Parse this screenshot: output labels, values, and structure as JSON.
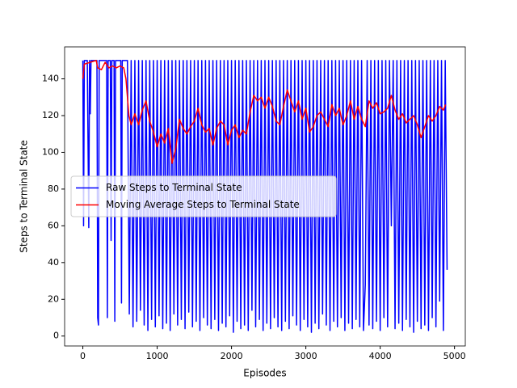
{
  "chart_data": {
    "type": "line",
    "xlabel": "Episodes",
    "ylabel": "Steps to Terminal State",
    "xlim": [
      -245,
      5145
    ],
    "ylim": [
      -5.4,
      157.4
    ],
    "xticks": [
      0,
      1000,
      2000,
      3000,
      4000,
      5000
    ],
    "yticks": [
      0,
      20,
      40,
      60,
      80,
      100,
      120,
      140
    ],
    "legend": "center left",
    "series": [
      {
        "name": "Raw Steps to Terminal State",
        "color": "#0000ff",
        "x": [
          0,
          10,
          20,
          60,
          80,
          90,
          100,
          110,
          190,
          200,
          210,
          220,
          320,
          330,
          340,
          370,
          380,
          390,
          420,
          430,
          440,
          510,
          520,
          530,
          580,
          600,
          625,
          650,
          675,
          700,
          725,
          750,
          775,
          800,
          825,
          850,
          875,
          900,
          925,
          950,
          975,
          1000,
          1025,
          1050,
          1075,
          1100,
          1125,
          1150,
          1175,
          1200,
          1225,
          1250,
          1275,
          1300,
          1325,
          1350,
          1375,
          1400,
          1425,
          1450,
          1475,
          1500,
          1525,
          1550,
          1575,
          1600,
          1625,
          1650,
          1675,
          1700,
          1725,
          1750,
          1775,
          1800,
          1825,
          1850,
          1875,
          1900,
          1925,
          1950,
          1975,
          2000,
          2025,
          2050,
          2075,
          2100,
          2125,
          2150,
          2175,
          2200,
          2225,
          2250,
          2275,
          2300,
          2325,
          2350,
          2375,
          2400,
          2425,
          2450,
          2475,
          2500,
          2525,
          2550,
          2575,
          2600,
          2625,
          2650,
          2675,
          2700,
          2725,
          2750,
          2775,
          2800,
          2825,
          2850,
          2875,
          2900,
          2925,
          2950,
          2975,
          3000,
          3025,
          3050,
          3075,
          3100,
          3125,
          3150,
          3175,
          3200,
          3225,
          3250,
          3275,
          3300,
          3325,
          3350,
          3375,
          3400,
          3425,
          3450,
          3475,
          3500,
          3525,
          3550,
          3575,
          3600,
          3625,
          3650,
          3675,
          3700,
          3725,
          3750,
          3775,
          3800,
          3825,
          3850,
          3875,
          3900,
          3925,
          3950,
          3975,
          4000,
          4025,
          4050,
          4075,
          4100,
          4125,
          4150,
          4175,
          4200,
          4225,
          4250,
          4275,
          4300,
          4325,
          4350,
          4375,
          4400,
          4425,
          4450,
          4475,
          4500,
          4525,
          4550,
          4575,
          4600,
          4625,
          4650,
          4675,
          4700,
          4725,
          4750,
          4775,
          4800,
          4825,
          4850,
          4875,
          4900
        ],
        "values": [
          150,
          60,
          150,
          150,
          59,
          150,
          121,
          150,
          150,
          10,
          6,
          150,
          150,
          10,
          150,
          150,
          52,
          150,
          150,
          8,
          150,
          150,
          18,
          150,
          150,
          150,
          12,
          150,
          5,
          150,
          8,
          150,
          14,
          150,
          6,
          150,
          3,
          150,
          9,
          150,
          5,
          150,
          11,
          150,
          4,
          150,
          7,
          150,
          3,
          150,
          12,
          150,
          6,
          150,
          9,
          150,
          4,
          150,
          13,
          150,
          5,
          150,
          8,
          150,
          3,
          150,
          10,
          150,
          6,
          150,
          4,
          150,
          9,
          150,
          3,
          150,
          7,
          150,
          5,
          150,
          11,
          150,
          2,
          150,
          8,
          150,
          4,
          150,
          6,
          150,
          3,
          150,
          14,
          150,
          5,
          150,
          9,
          150,
          3,
          150,
          7,
          150,
          4,
          150,
          10,
          150,
          5,
          150,
          3,
          150,
          8,
          150,
          4,
          150,
          11,
          150,
          6,
          150,
          3,
          150,
          9,
          150,
          5,
          150,
          2,
          150,
          7,
          150,
          4,
          150,
          12,
          150,
          6,
          150,
          3,
          150,
          8,
          150,
          5,
          150,
          10,
          150,
          3,
          150,
          7,
          150,
          4,
          150,
          9,
          150,
          5,
          150,
          3,
          28,
          150,
          6,
          150,
          4,
          150,
          8,
          150,
          3,
          150,
          10,
          150,
          5,
          150,
          60,
          150,
          4,
          150,
          7,
          150,
          3,
          150,
          9,
          150,
          5,
          150,
          2,
          150,
          8,
          150,
          4,
          150,
          6,
          150,
          3,
          150,
          10,
          150,
          5,
          150,
          19,
          150,
          3,
          150,
          36
        ]
      },
      {
        "name": "Moving Average Steps to Terminal State",
        "color": "#ff0000",
        "x": [
          0,
          20,
          100,
          180,
          200,
          250,
          300,
          350,
          400,
          450,
          500,
          550,
          580,
          620,
          650,
          700,
          750,
          800,
          850,
          900,
          950,
          1000,
          1050,
          1100,
          1150,
          1200,
          1250,
          1300,
          1350,
          1400,
          1450,
          1500,
          1550,
          1600,
          1650,
          1700,
          1750,
          1800,
          1850,
          1900,
          1950,
          2000,
          2050,
          2100,
          2150,
          2200,
          2250,
          2300,
          2350,
          2400,
          2450,
          2500,
          2550,
          2600,
          2650,
          2700,
          2750,
          2800,
          2850,
          2900,
          2950,
          3000,
          3050,
          3100,
          3150,
          3200,
          3250,
          3300,
          3350,
          3400,
          3450,
          3500,
          3550,
          3600,
          3650,
          3700,
          3750,
          3800,
          3850,
          3900,
          3950,
          4000,
          4050,
          4100,
          4150,
          4200,
          4250,
          4300,
          4350,
          4400,
          4450,
          4500,
          4550,
          4600,
          4650,
          4700,
          4750,
          4800,
          4850,
          4880
        ],
        "values": [
          140,
          148,
          149,
          150,
          146,
          145,
          149,
          146,
          147,
          146,
          147,
          146,
          140,
          120,
          115,
          121,
          115,
          123,
          128,
          117,
          111,
          103,
          110,
          105,
          113,
          94,
          102,
          118,
          113,
          110,
          114,
          117,
          124,
          115,
          111,
          113,
          104,
          113,
          117,
          115,
          104,
          112,
          115,
          108,
          112,
          110,
          122,
          131,
          128,
          130,
          124,
          130,
          125,
          117,
          115,
          125,
          134,
          128,
          122,
          128,
          118,
          124,
          111,
          114,
          120,
          122,
          118,
          114,
          126,
          120,
          124,
          115,
          120,
          128,
          118,
          125,
          118,
          114,
          128,
          124,
          127,
          121,
          122,
          124,
          131,
          123,
          118,
          121,
          116,
          118,
          120,
          115,
          108,
          114,
          120,
          117,
          120,
          125,
          123,
          126
        ]
      }
    ]
  }
}
